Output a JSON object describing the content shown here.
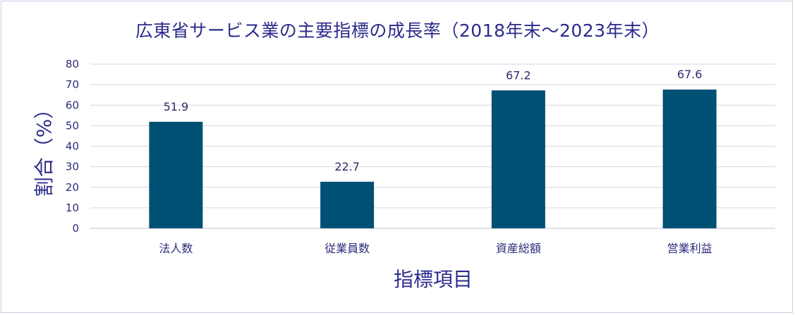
{
  "chart_data": {
    "type": "bar",
    "title": "広東省サービス業の主要指標の成長率（2018年末〜2023年末）",
    "xlabel": "指標項目",
    "ylabel": "割合（%）",
    "categories": [
      "法人数",
      "従業員数",
      "資産総額",
      "営業利益"
    ],
    "values": [
      51.9,
      22.7,
      67.2,
      67.6
    ],
    "data_labels": [
      "51.9",
      "22.7",
      "67.2",
      "67.6"
    ],
    "ylim": [
      0,
      80
    ],
    "yticks": [
      "0",
      "10",
      "20",
      "30",
      "40",
      "50",
      "60",
      "70",
      "80"
    ],
    "grid": true,
    "legend": "none",
    "colors": {
      "bar": "#005074",
      "grid": "#d6d6e6",
      "axis": "#c0c0d0",
      "text": "#2b2b7c"
    }
  }
}
